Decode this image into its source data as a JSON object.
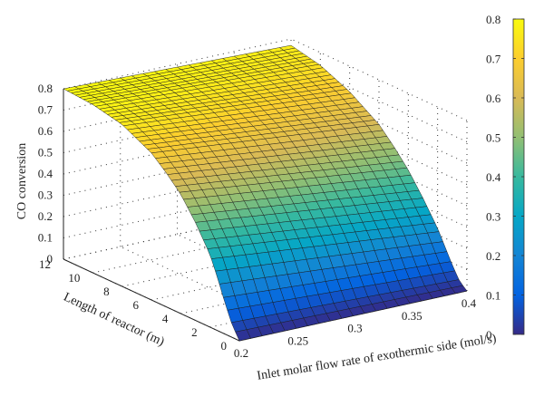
{
  "chart_data": {
    "type": "surface",
    "title": "",
    "xlabel": "Inlet molar flow rate of exothermic side (mol/s)",
    "ylabel": "Length of reactor (m)",
    "zlabel": "CO conversion",
    "x_ticks": [
      "0.2",
      "0.25",
      "0.3",
      "0.35",
      "0.4"
    ],
    "y_ticks": [
      "0",
      "2",
      "4",
      "6",
      "8",
      "10",
      "12"
    ],
    "z_ticks": [
      "0",
      "0.1",
      "0.2",
      "0.3",
      "0.4",
      "0.5",
      "0.6",
      "0.7",
      "0.8"
    ],
    "colorbar_ticks": [
      "0",
      "0.1",
      "0.2",
      "0.3",
      "0.4",
      "0.5",
      "0.6",
      "0.7",
      "0.8"
    ],
    "xlim": [
      0.2,
      0.4
    ],
    "ylim": [
      0,
      12
    ],
    "zlim": [
      0,
      0.8
    ],
    "colorbar_range": [
      0,
      0.8
    ],
    "colormap": [
      "#352a87",
      "#0363e1",
      "#1485d4",
      "#06a7c6",
      "#38b99e",
      "#92bf73",
      "#d9ba56",
      "#fcce2e",
      "#f9fb0e"
    ],
    "grid": "dotted",
    "surface_profile": {
      "description_note": "",
      "length_m": [
        0,
        0.5,
        1,
        1.5,
        2,
        3,
        4,
        5,
        6,
        8,
        10,
        12
      ],
      "conversion_at_low_flow": [
        0.0,
        0.06,
        0.15,
        0.25,
        0.34,
        0.46,
        0.56,
        0.63,
        0.69,
        0.76,
        0.79,
        0.8
      ],
      "conversion_at_high_flow": [
        0.0,
        0.03,
        0.09,
        0.16,
        0.23,
        0.34,
        0.44,
        0.52,
        0.59,
        0.68,
        0.74,
        0.77
      ]
    }
  }
}
